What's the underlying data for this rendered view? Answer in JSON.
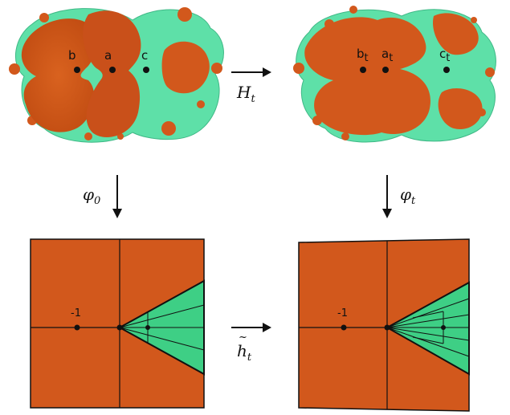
{
  "left_julia": {
    "points": [
      "b",
      "a",
      "c"
    ]
  },
  "right_julia": {
    "points": [
      {
        "base": "b",
        "sub": "t"
      },
      {
        "base": "a",
        "sub": "t"
      },
      {
        "base": "c",
        "sub": "t"
      }
    ]
  },
  "maps": {
    "top": {
      "base": "H",
      "sub": "t"
    },
    "left": {
      "base": "φ",
      "sub": "0"
    },
    "right": {
      "base": "φ",
      "sub": "t"
    },
    "bottom": {
      "base": "h",
      "accent": "~",
      "sub": "t"
    }
  },
  "squares": {
    "left_label": "-1",
    "right_label": "-1"
  },
  "colors": {
    "basin": "#d2581c",
    "basin_dark": "#b8450f",
    "fill_green": "#5ee0a8",
    "sector_green": "#3ecf85",
    "ink": "#111111"
  }
}
